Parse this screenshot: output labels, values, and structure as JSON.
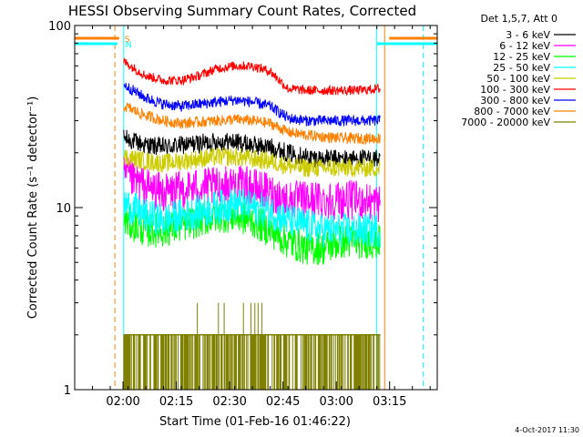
{
  "chart_data": {
    "type": "line",
    "title": "HESSI Observing Summary Count Rates, Corrected",
    "xlabel": "Start Time (01-Feb-16 01:46:22)",
    "ylabel": "Corrected Count Rate (s⁻¹ detector⁻¹)",
    "y_scale": "log",
    "ylim": [
      1,
      100
    ],
    "xlim_minutes_after_start": [
      0,
      102
    ],
    "x_ticks": [
      {
        "label": "02:00",
        "minutes": 13.6
      },
      {
        "label": "02:15",
        "minutes": 28.6
      },
      {
        "label": "02:30",
        "minutes": 43.6
      },
      {
        "label": "02:45",
        "minutes": 58.6
      },
      {
        "label": "03:00",
        "minutes": 73.6
      },
      {
        "label": "03:15",
        "minutes": 88.6
      }
    ],
    "y_ticks": [
      {
        "label": "1",
        "value": 1
      },
      {
        "label": "10",
        "value": 10
      },
      {
        "label": "100",
        "value": 100
      }
    ],
    "data_interval_minutes": [
      13.8,
      86.0
    ],
    "legend_header": "Det 1,5,7, Att 0",
    "legend_position": "right",
    "series": [
      {
        "name": "3 - 6 keV",
        "color": "#000000",
        "values": [
          [
            14,
            24
          ],
          [
            20,
            22
          ],
          [
            25,
            21.5
          ],
          [
            30,
            22
          ],
          [
            35,
            22.5
          ],
          [
            40,
            23
          ],
          [
            45,
            23
          ],
          [
            50,
            22
          ],
          [
            55,
            21.5
          ],
          [
            60,
            20
          ],
          [
            65,
            19
          ],
          [
            70,
            18.5
          ],
          [
            75,
            18.5
          ],
          [
            80,
            18.5
          ],
          [
            86,
            18.5
          ]
        ]
      },
      {
        "name": "6 - 12 keV",
        "color": "#ff00ff",
        "values": [
          [
            14,
            15
          ],
          [
            20,
            13
          ],
          [
            25,
            12
          ],
          [
            30,
            12.5
          ],
          [
            35,
            13
          ],
          [
            40,
            13
          ],
          [
            45,
            13.5
          ],
          [
            50,
            13
          ],
          [
            55,
            12
          ],
          [
            60,
            11
          ],
          [
            65,
            11
          ],
          [
            70,
            11
          ],
          [
            75,
            11
          ],
          [
            80,
            11
          ],
          [
            86,
            10.5
          ]
        ]
      },
      {
        "name": "12 - 25 keV",
        "color": "#00ff00",
        "values": [
          [
            14,
            8.5
          ],
          [
            20,
            7.5
          ],
          [
            25,
            7.5
          ],
          [
            30,
            8
          ],
          [
            35,
            8.5
          ],
          [
            40,
            9
          ],
          [
            45,
            9
          ],
          [
            50,
            8.5
          ],
          [
            55,
            7.5
          ],
          [
            60,
            6.5
          ],
          [
            65,
            6
          ],
          [
            70,
            6
          ],
          [
            75,
            6.5
          ],
          [
            80,
            6.5
          ],
          [
            86,
            6.5
          ]
        ]
      },
      {
        "name": "25 - 50 keV",
        "color": "#00ffff",
        "values": [
          [
            14,
            10.5
          ],
          [
            20,
            9
          ],
          [
            25,
            8.5
          ],
          [
            30,
            9
          ],
          [
            35,
            9.5
          ],
          [
            40,
            10
          ],
          [
            45,
            10.5
          ],
          [
            50,
            10
          ],
          [
            55,
            9.5
          ],
          [
            60,
            8.5
          ],
          [
            65,
            8
          ],
          [
            70,
            7.5
          ],
          [
            75,
            7.5
          ],
          [
            80,
            7.5
          ],
          [
            86,
            7.5
          ]
        ]
      },
      {
        "name": "50 - 100 keV",
        "color": "#cccc00",
        "values": [
          [
            14,
            19
          ],
          [
            20,
            18
          ],
          [
            25,
            17.5
          ],
          [
            30,
            18
          ],
          [
            35,
            18.5
          ],
          [
            40,
            19
          ],
          [
            45,
            19
          ],
          [
            50,
            18.5
          ],
          [
            55,
            18
          ],
          [
            60,
            17
          ],
          [
            65,
            16.5
          ],
          [
            70,
            16.5
          ],
          [
            75,
            16.5
          ],
          [
            80,
            16.5
          ],
          [
            86,
            16.5
          ]
        ]
      },
      {
        "name": "100 - 300 keV",
        "color": "#ff0000",
        "values": [
          [
            14,
            63
          ],
          [
            20,
            53
          ],
          [
            25,
            50
          ],
          [
            30,
            50
          ],
          [
            35,
            53
          ],
          [
            40,
            58
          ],
          [
            45,
            60
          ],
          [
            50,
            60
          ],
          [
            55,
            56
          ],
          [
            60,
            45
          ],
          [
            65,
            44
          ],
          [
            70,
            44
          ],
          [
            75,
            44
          ],
          [
            80,
            44
          ],
          [
            86,
            45
          ]
        ]
      },
      {
        "name": "300 - 800 keV",
        "color": "#0000ff",
        "values": [
          [
            14,
            47
          ],
          [
            20,
            40
          ],
          [
            25,
            37
          ],
          [
            30,
            36
          ],
          [
            35,
            37
          ],
          [
            40,
            38
          ],
          [
            45,
            39
          ],
          [
            50,
            38
          ],
          [
            55,
            36
          ],
          [
            60,
            31
          ],
          [
            65,
            30
          ],
          [
            70,
            30
          ],
          [
            75,
            30
          ],
          [
            80,
            30
          ],
          [
            86,
            30
          ]
        ]
      },
      {
        "name": "800 - 7000 keV",
        "color": "#ff8000",
        "values": [
          [
            14,
            36
          ],
          [
            20,
            32
          ],
          [
            25,
            30
          ],
          [
            30,
            29
          ],
          [
            35,
            29.5
          ],
          [
            40,
            30
          ],
          [
            45,
            30.5
          ],
          [
            50,
            30
          ],
          [
            55,
            29
          ],
          [
            60,
            26
          ],
          [
            65,
            25
          ],
          [
            70,
            24.5
          ],
          [
            75,
            24
          ],
          [
            80,
            24
          ],
          [
            86,
            24
          ]
        ]
      },
      {
        "name": "7000 - 20000 keV",
        "color": "#808000",
        "values": [
          [
            14,
            1.5
          ],
          [
            20,
            1.5
          ],
          [
            30,
            1.5
          ],
          [
            40,
            2
          ],
          [
            45,
            2
          ],
          [
            50,
            2
          ],
          [
            60,
            1.5
          ],
          [
            70,
            1.5
          ],
          [
            80,
            1.5
          ],
          [
            86,
            1.5
          ]
        ]
      }
    ],
    "flags": [
      {
        "label": "S",
        "color": "#ff8000",
        "segments": [
          [
            0,
            12.5
          ],
          [
            88.5,
            102
          ]
        ],
        "level": 88
      },
      {
        "label": "N",
        "color": "#00ffff",
        "segments": [
          [
            0,
            12.0
          ],
          [
            85.0,
            102
          ]
        ],
        "level": 76
      }
    ],
    "vertical_markers": [
      {
        "minutes": 11.3,
        "color": "#ff8000",
        "style": "dashed"
      },
      {
        "minutes": 13.8,
        "color": "#00ffff",
        "style": "solid"
      },
      {
        "minutes": 85.0,
        "color": "#00ffff",
        "style": "solid"
      },
      {
        "minutes": 87.2,
        "color": "#ff8000",
        "style": "solid"
      },
      {
        "minutes": 98.0,
        "color": "#00ffff",
        "style": "dashed"
      }
    ],
    "grid": false
  },
  "footer": {
    "timestamp": "4-Oct-2017 11:30"
  },
  "colors": {
    "background": "#ffffff",
    "axes": "#000000"
  }
}
